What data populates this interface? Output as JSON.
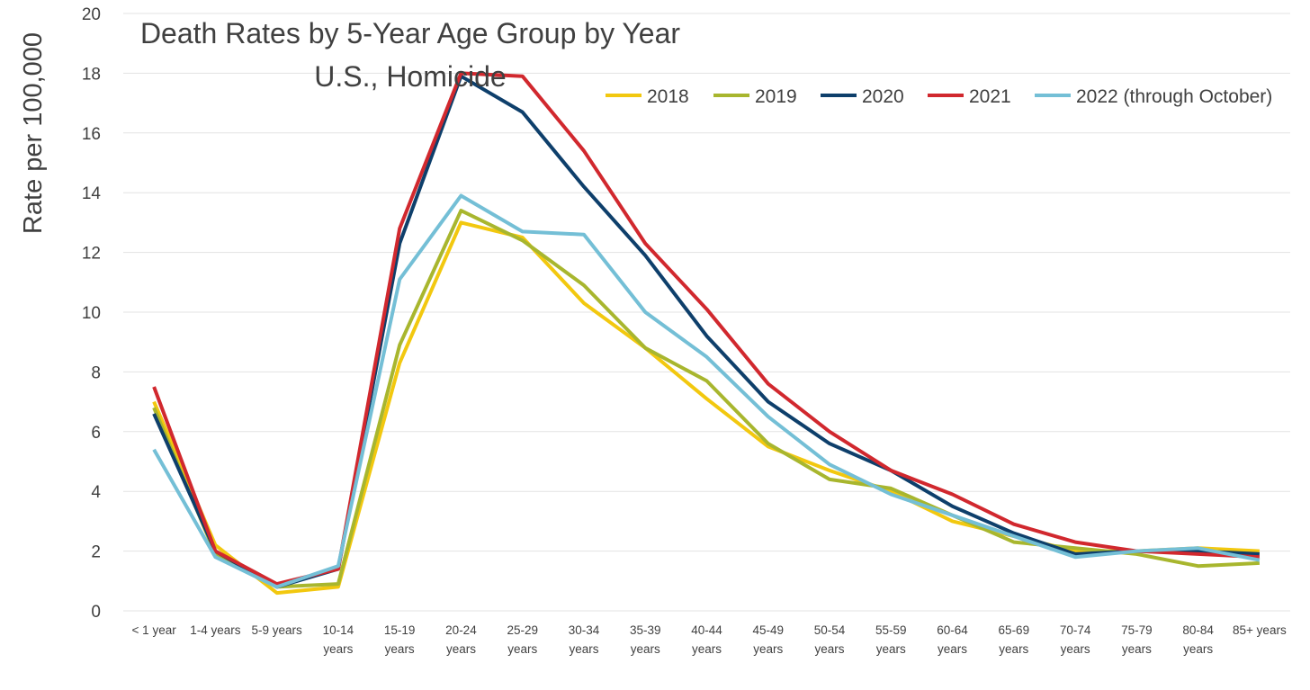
{
  "chart_data": {
    "type": "line",
    "title": "Death Rates by 5-Year Age Group by Year",
    "subtitle": "U.S., Homicide",
    "xlabel": "",
    "ylabel": "Rate per 100,000",
    "ylim": [
      0,
      20
    ],
    "yticks": [
      "0",
      "2",
      "4",
      "6",
      "8",
      "10",
      "12",
      "14",
      "16",
      "18",
      "20"
    ],
    "grid": true,
    "legend_position": "top-right",
    "categories": [
      [
        "< 1 year"
      ],
      [
        "1-4 years"
      ],
      [
        "5-9 years"
      ],
      [
        "10-14",
        "years"
      ],
      [
        "15-19",
        "years"
      ],
      [
        "20-24",
        "years"
      ],
      [
        "25-29",
        "years"
      ],
      [
        "30-34",
        "years"
      ],
      [
        "35-39",
        "years"
      ],
      [
        "40-44",
        "years"
      ],
      [
        "45-49",
        "years"
      ],
      [
        "50-54",
        "years"
      ],
      [
        "55-59",
        "years"
      ],
      [
        "60-64",
        "years"
      ],
      [
        "65-69",
        "years"
      ],
      [
        "70-74",
        "years"
      ],
      [
        "75-79",
        "years"
      ],
      [
        "80-84",
        "years"
      ],
      [
        "85+ years"
      ]
    ],
    "series": [
      {
        "name": "2018",
        "color": "#f2c80f",
        "values": [
          7.0,
          2.2,
          0.6,
          0.8,
          8.3,
          13.0,
          12.5,
          10.3,
          8.8,
          7.1,
          5.5,
          4.7,
          4.0,
          3.0,
          2.5,
          2.0,
          2.0,
          2.1,
          2.0
        ]
      },
      {
        "name": "2019",
        "color": "#a8b62e",
        "values": [
          6.8,
          1.9,
          0.8,
          0.9,
          8.9,
          13.4,
          12.4,
          10.9,
          8.8,
          7.7,
          5.6,
          4.4,
          4.1,
          3.2,
          2.3,
          2.1,
          1.9,
          1.5,
          1.6
        ]
      },
      {
        "name": "2020",
        "color": "#0e3f6b",
        "values": [
          6.6,
          2.0,
          0.8,
          1.4,
          12.3,
          17.9,
          16.7,
          14.2,
          11.9,
          9.2,
          7.0,
          5.6,
          4.7,
          3.5,
          2.6,
          1.9,
          2.0,
          2.0,
          1.9
        ]
      },
      {
        "name": "2021",
        "color": "#d1282e",
        "values": [
          7.5,
          2.0,
          0.9,
          1.4,
          12.8,
          18.0,
          17.9,
          15.4,
          12.3,
          10.1,
          7.6,
          6.0,
          4.7,
          3.9,
          2.9,
          2.3,
          2.0,
          1.9,
          1.8
        ]
      },
      {
        "name": "2022 (through October)",
        "color": "#74bfd6",
        "values": [
          5.4,
          1.8,
          0.8,
          1.5,
          11.1,
          13.9,
          12.7,
          12.6,
          10.0,
          8.5,
          6.5,
          4.9,
          3.9,
          3.2,
          2.5,
          1.8,
          2.0,
          2.1,
          1.7
        ]
      }
    ]
  }
}
